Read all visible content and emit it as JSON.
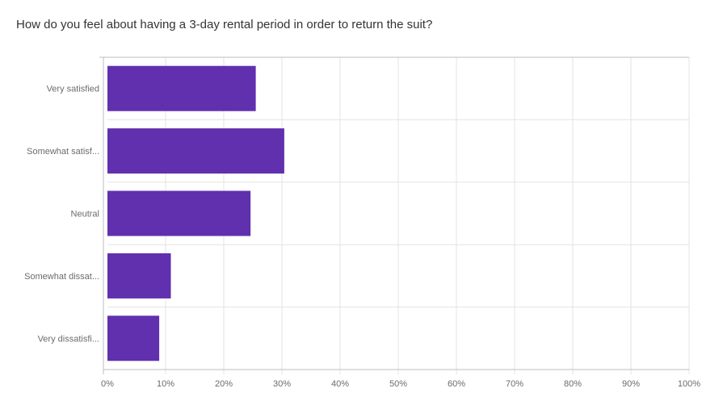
{
  "question": {
    "text": "How do you feel about having a 3-day rental period in order to return the suit?"
  },
  "colors": {
    "bar": "#6030ae",
    "grid": "#e3e3e3",
    "axis": "#bdbdbd"
  },
  "chart_data": {
    "type": "bar",
    "orientation": "horizontal",
    "title": "",
    "categories": [
      "Very satisfied",
      "Somewhat satisf...",
      "Neutral",
      "Somewhat dissat...",
      "Very dissatisfi..."
    ],
    "values": [
      25.5,
      30.4,
      24.6,
      10.9,
      8.9
    ],
    "xlim": [
      0,
      100
    ],
    "ticks": [
      "0%",
      "10%",
      "20%",
      "30%",
      "40%",
      "50%",
      "60%",
      "70%",
      "80%",
      "90%",
      "100%"
    ],
    "grid": true
  }
}
